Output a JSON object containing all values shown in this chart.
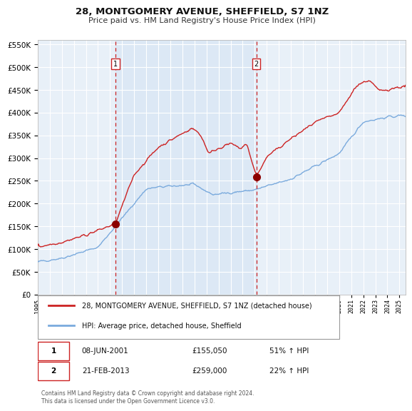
{
  "title": "28, MONTGOMERY AVENUE, SHEFFIELD, S7 1NZ",
  "subtitle": "Price paid vs. HM Land Registry's House Price Index (HPI)",
  "legend_line1": "28, MONTGOMERY AVENUE, SHEFFIELD, S7 1NZ (detached house)",
  "legend_line2": "HPI: Average price, detached house, Sheffield",
  "annotation1_label": "1",
  "annotation1_date": "08-JUN-2001",
  "annotation1_price": 155050,
  "annotation1_price_str": "£155,050",
  "annotation1_pct": "51% ↑ HPI",
  "annotation2_label": "2",
  "annotation2_date": "21-FEB-2013",
  "annotation2_price": 259000,
  "annotation2_price_str": "£259,000",
  "annotation2_pct": "22% ↑ HPI",
  "vline1_x": 2001.44,
  "vline2_x": 2013.13,
  "shaded_start": 2001.44,
  "shaded_end": 2013.13,
  "ylim": [
    0,
    560000
  ],
  "xlim": [
    1995.0,
    2025.5
  ],
  "background_color": "#ffffff",
  "plot_bg_color": "#e8f0f8",
  "shaded_bg_color": "#dce8f5",
  "grid_color": "#ffffff",
  "red_line_color": "#cc2222",
  "blue_line_color": "#7aaadd",
  "footnote": "Contains HM Land Registry data © Crown copyright and database right 2024.\nThis data is licensed under the Open Government Licence v3.0."
}
